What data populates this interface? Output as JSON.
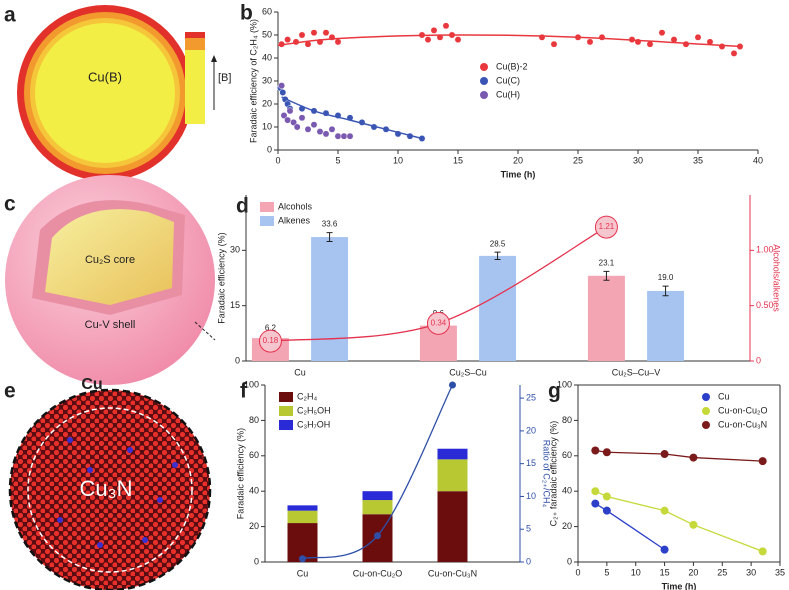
{
  "panels": {
    "a": {
      "label": "a",
      "inner": "Cu(B)",
      "scale": "[B]"
    },
    "c": {
      "label": "c",
      "core": "Cu₂S core",
      "shell": "Cu-V shell"
    },
    "e": {
      "label": "e",
      "top": "Cu",
      "inner": "Cu₃N"
    }
  },
  "chart_data": [
    {
      "type": "scatter",
      "panel_label": "b",
      "ylabel": "Faradaic efficiency of C₂H₄ (%)",
      "xlabel": "Time (h)",
      "xlim": [
        0,
        40
      ],
      "xticks": [
        0,
        5,
        10,
        15,
        20,
        25,
        30,
        35,
        40
      ],
      "ylim": [
        0,
        60
      ],
      "yticks": [
        0,
        10,
        20,
        30,
        40,
        50,
        60
      ],
      "legend": "center",
      "series": [
        {
          "name": "Cu(B)-2",
          "color": "#e8383d",
          "x": [
            0.3,
            0.8,
            1.5,
            2,
            2.5,
            3,
            3.5,
            4,
            4.5,
            5,
            12,
            12.5,
            13,
            13.5,
            14,
            14.5,
            15,
            22,
            23,
            25,
            26,
            27,
            29.5,
            30,
            31,
            32,
            33,
            34,
            35,
            36,
            37,
            38,
            38.5
          ],
          "values": [
            46,
            48,
            47,
            50,
            46,
            51,
            47,
            51,
            49,
            47,
            50,
            48,
            52,
            49,
            54,
            50,
            48,
            49,
            46,
            49,
            47,
            49,
            48,
            47,
            46,
            51,
            48,
            46,
            49,
            47,
            45,
            42,
            45
          ],
          "fit": {
            "x": [
              0,
              5,
              15,
              25,
              38.5
            ],
            "values": [
              45.5,
              48.5,
              50,
              49,
              45
            ]
          }
        },
        {
          "name": "Cu(C)",
          "color": "#3a55b4",
          "x": [
            0.2,
            0.4,
            0.6,
            0.8,
            1,
            2,
            3,
            4,
            5,
            6,
            7,
            8,
            9,
            10,
            11,
            12
          ],
          "values": [
            27,
            25,
            22,
            20,
            18,
            18,
            17,
            16,
            15,
            14,
            12,
            10,
            9,
            7,
            6,
            5
          ],
          "fit": {
            "x": [
              0.3,
              3,
              6,
              9,
              12
            ],
            "values": [
              23,
              17,
              13,
              9,
              5
            ]
          }
        },
        {
          "name": "Cu(H)",
          "color": "#7a5ab0",
          "x": [
            0.3,
            0.5,
            0.8,
            1,
            1.3,
            1.6,
            2,
            2.5,
            3,
            3.5,
            4,
            4.5,
            5,
            5.5,
            6
          ],
          "values": [
            28,
            15,
            13,
            17,
            12,
            10,
            14,
            9,
            11,
            8,
            7,
            9,
            6,
            6,
            6
          ]
        }
      ]
    },
    {
      "type": "bar",
      "panel_label": "d",
      "ylabel": "Faradaic efficiency (%)",
      "y2label": "Alcohols/alkenes",
      "categories": [
        "Cu",
        "Cu₂S–Cu",
        "Cu₂S–Cu–V"
      ],
      "ylim": [
        0,
        45
      ],
      "yticks": [
        0,
        15,
        30
      ],
      "y2lim": [
        0,
        1.5
      ],
      "y2ticks": [
        0,
        {
          "value": 0.5,
          "label": "0.50"
        },
        {
          "value": 1,
          "label": "1.00"
        }
      ],
      "legend": "upper left",
      "series": [
        {
          "name": "Alcohols",
          "color": "#f3a5b3",
          "values": [
            6.2,
            9.6,
            23.1
          ],
          "errors": [
            0.5,
            1.0,
            1.2
          ]
        },
        {
          "name": "Alkenes",
          "color": "#a7c4f0",
          "values": [
            33.6,
            28.5,
            19.0
          ],
          "value_labels": [
            "33.6",
            "28.5",
            "19.0"
          ],
          "errors": [
            1.2,
            1.0,
            1.3
          ]
        },
        {
          "color": "#e5334f",
          "values": [
            0.18,
            0.34,
            1.21
          ],
          "axis": "y2"
        }
      ]
    },
    {
      "type": "stacked_bar",
      "panel_label": "f",
      "ylabel": "Faradaic efficiency (%)",
      "y2label": "Ratio of C₂₊/CH₄",
      "categories": [
        "Cu",
        "Cu-on-Cu₂O",
        "Cu-on-Cu₃N"
      ],
      "ylim": [
        0,
        100
      ],
      "yticks": [
        0,
        20,
        40,
        60,
        80,
        100
      ],
      "y2lim": [
        0,
        27
      ],
      "y2ticks": [
        0,
        5,
        10,
        15,
        20,
        25
      ],
      "legend": "upper left",
      "series": [
        {
          "name": "C₂H₄",
          "color": "#6b0d0d",
          "values": [
            22,
            27,
            40
          ]
        },
        {
          "name": "C₂H₅OH",
          "color": "#b8c832",
          "values": [
            7,
            8,
            18
          ]
        },
        {
          "name": "C₃H₇OH",
          "color": "#2a2ad6",
          "values": [
            3,
            5,
            6
          ]
        },
        {
          "color": "#2e4fa8",
          "values": [
            0.5,
            4,
            27
          ],
          "axis": "y2"
        }
      ]
    },
    {
      "type": "line",
      "panel_label": "g",
      "ylabel": "C₂₊ faradaic efficiency (%)",
      "xlabel": "Time (h)",
      "xlim": [
        0,
        35
      ],
      "xticks": [
        0,
        5,
        10,
        15,
        20,
        25,
        30,
        35
      ],
      "ylim": [
        0,
        100
      ],
      "yticks": [
        0,
        20,
        40,
        60,
        80,
        100
      ],
      "legend": "upper right",
      "series": [
        {
          "name": "Cu",
          "color": "#2b3fc8",
          "x": [
            3,
            5,
            15
          ],
          "values": [
            33,
            29,
            7
          ]
        },
        {
          "name": "Cu-on-Cu₂O",
          "color": "#c6d93a",
          "x": [
            3,
            5,
            15,
            20,
            32
          ],
          "values": [
            40,
            37,
            29,
            21,
            6
          ]
        },
        {
          "name": "Cu-on-Cu₃N",
          "color": "#7a1a1a",
          "x": [
            3,
            5,
            15,
            20,
            32
          ],
          "values": [
            63,
            62,
            61,
            59,
            57
          ]
        }
      ]
    }
  ]
}
